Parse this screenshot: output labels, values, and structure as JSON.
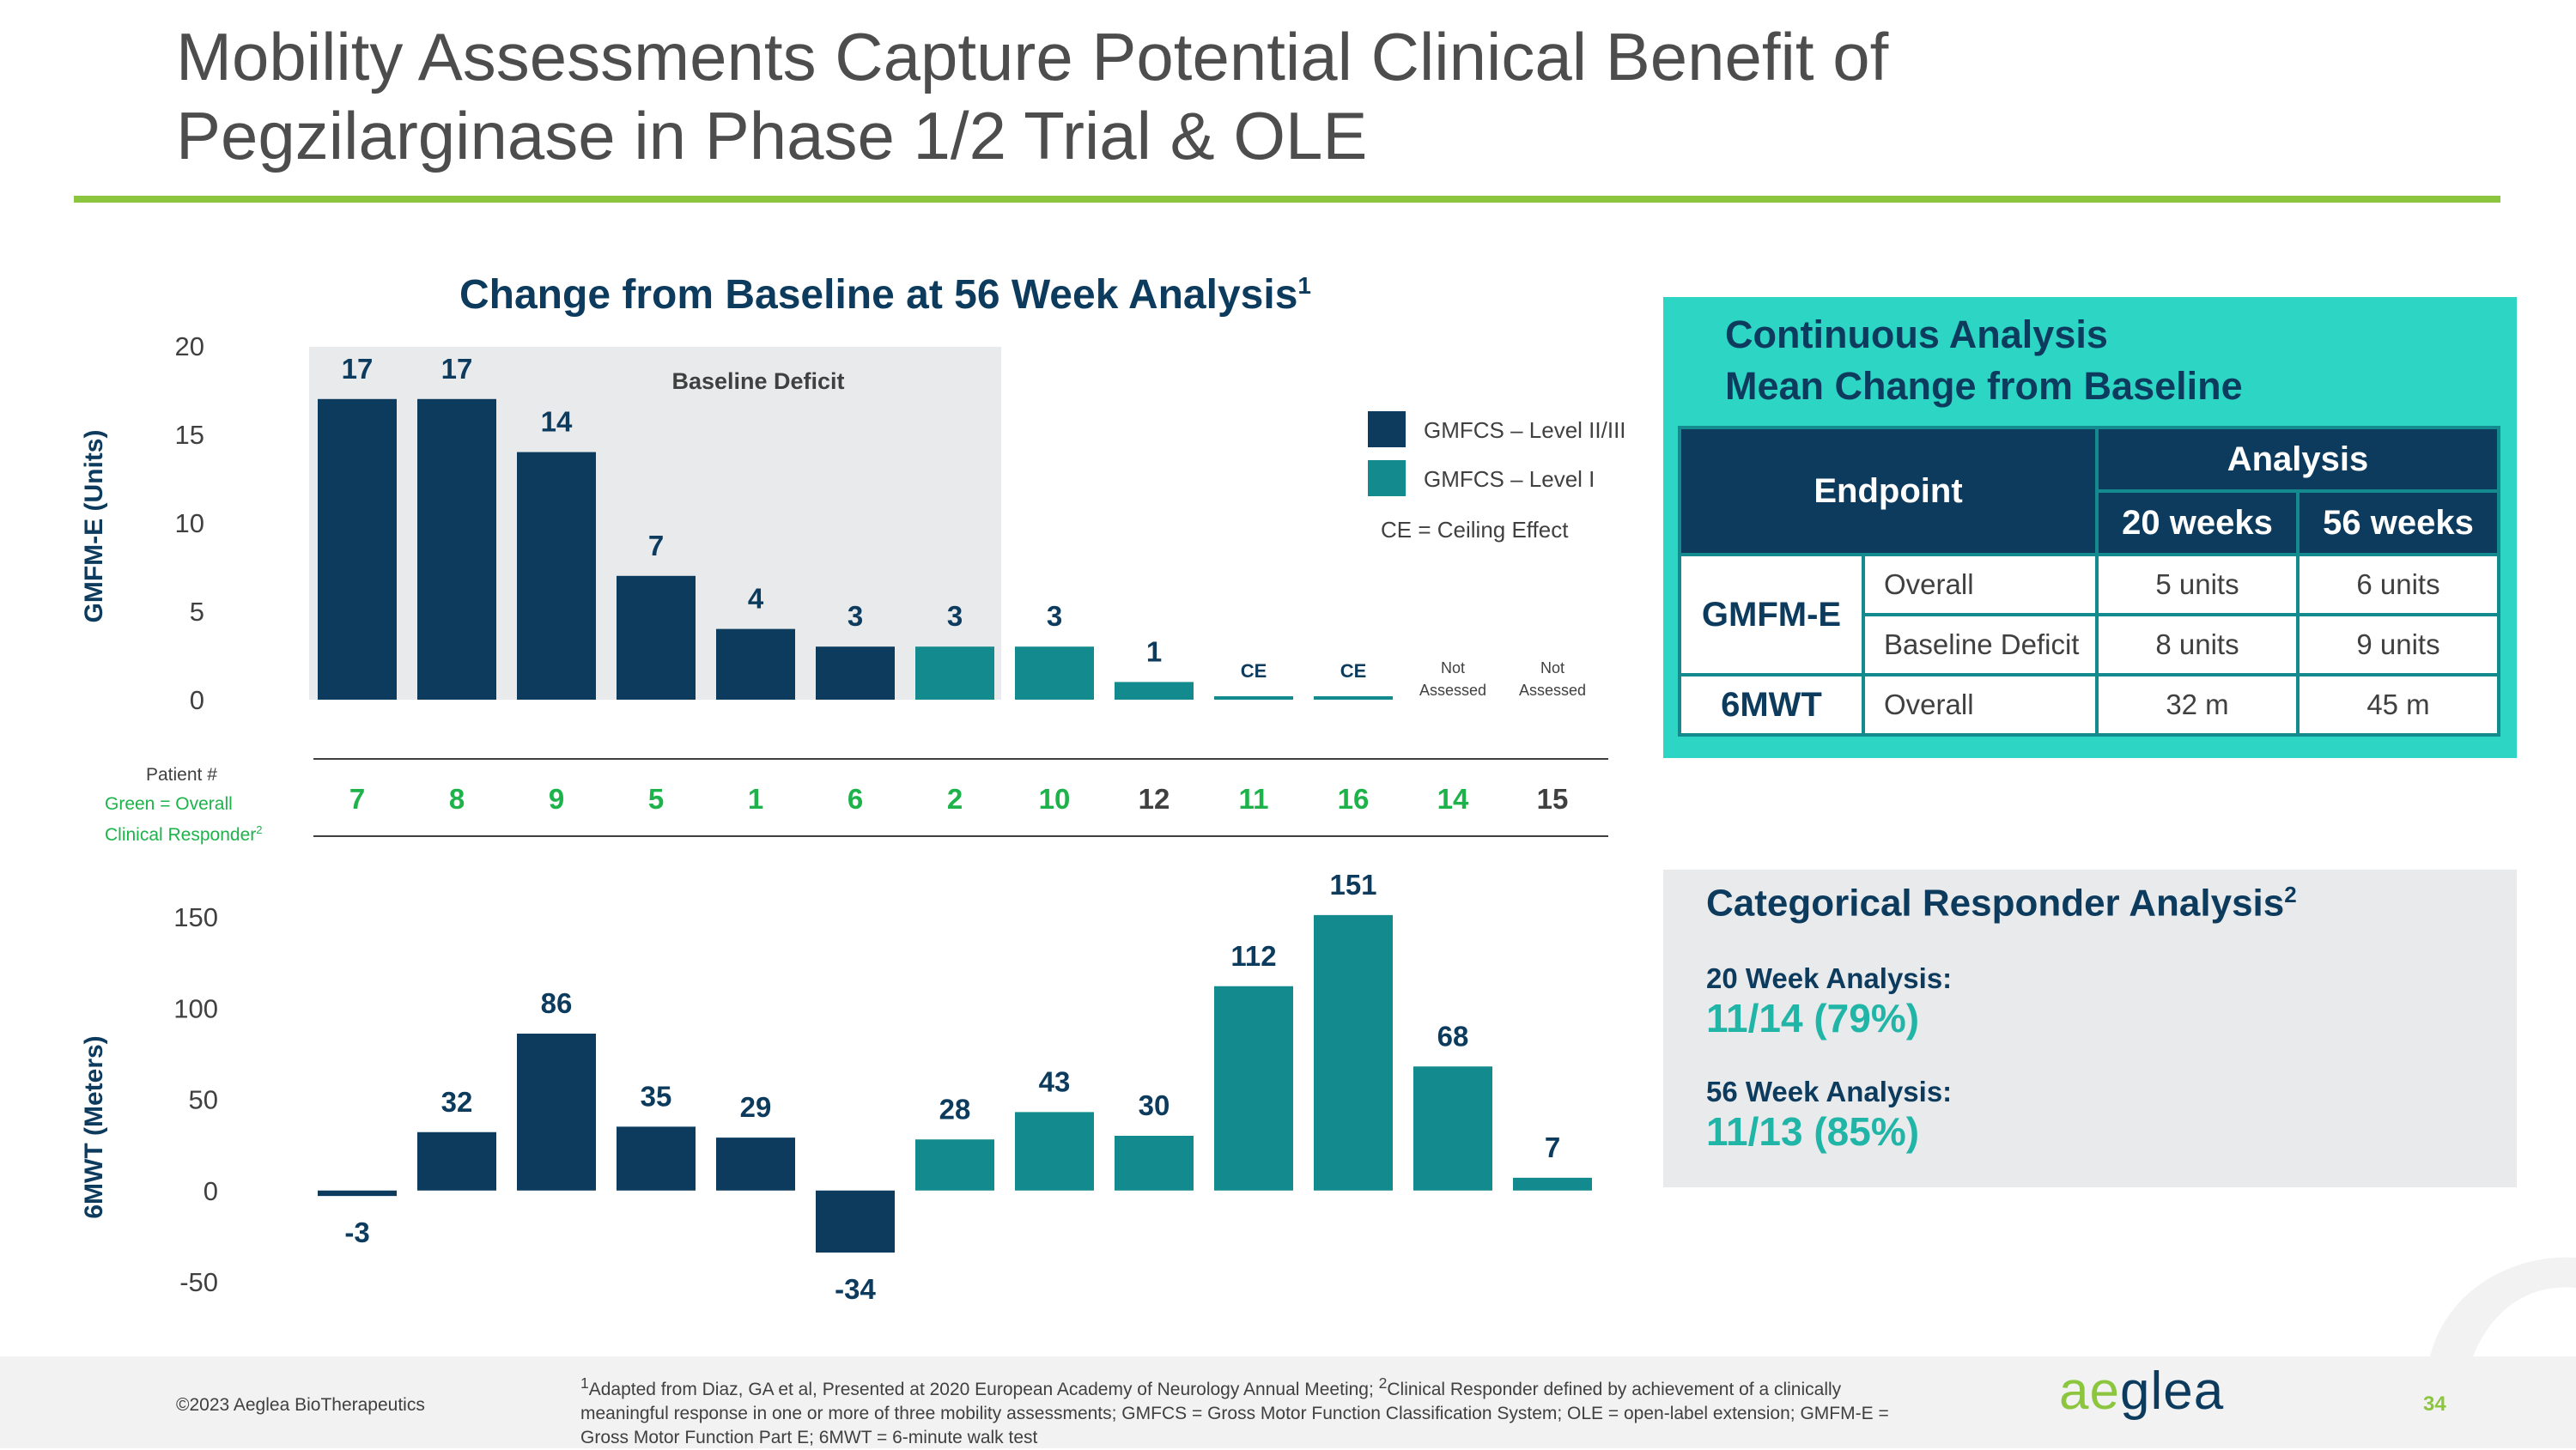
{
  "title": "Mobility Assessments Capture Potential Clinical Benefit of Pegzilarginase in Phase 1/2 Trial & OLE",
  "chart_title": "Change from Baseline at 56 Week Analysis",
  "chart_title_sup": "1",
  "colors": {
    "dark": "#0d3b5e",
    "teal": "#138a8e",
    "green": "#1db34a",
    "accent": "#8cc63f",
    "panel": "#2dd5c4",
    "shade": "#e8eaeb"
  },
  "legend": {
    "dark_label": "GMFCS – Level II/III",
    "teal_label": "GMFCS – Level I",
    "ce_note": "CE = Ceiling Effect"
  },
  "baseline_deficit_label": "Baseline Deficit",
  "patient_label": {
    "line1": "Patient #",
    "line2": "Green = Overall",
    "line3": "Clinical Responder",
    "sup": "2"
  },
  "chart_data": [
    {
      "type": "bar",
      "title": "Change from Baseline at 56 Week Analysis",
      "ylabel": "GMFM-E (Units)",
      "ylim": [
        0,
        20
      ],
      "yticks": [
        0,
        5,
        10,
        15,
        20
      ],
      "categories": [
        "7",
        "8",
        "9",
        "5",
        "1",
        "6",
        "2",
        "10",
        "12",
        "11",
        "16",
        "14",
        "15"
      ],
      "values": [
        17,
        17,
        14,
        7,
        4,
        3,
        3,
        3,
        1,
        0,
        0,
        null,
        null
      ],
      "labels": [
        "17",
        "17",
        "14",
        "7",
        "4",
        "3",
        "3",
        "3",
        "1",
        "CE",
        "CE",
        "Not Assessed",
        "Not Assessed"
      ],
      "level": [
        "II/III",
        "II/III",
        "II/III",
        "II/III",
        "II/III",
        "II/III",
        "I",
        "I",
        "I",
        "I",
        "I",
        "I",
        "I"
      ],
      "baseline_deficit_count": 7
    },
    {
      "type": "bar",
      "ylabel": "6MWT (Meters)",
      "ylim": [
        -50,
        150
      ],
      "yticks": [
        -50,
        0,
        50,
        100,
        150
      ],
      "categories": [
        "7",
        "8",
        "9",
        "5",
        "1",
        "6",
        "2",
        "10",
        "12",
        "11",
        "16",
        "14",
        "15"
      ],
      "values": [
        -3,
        32,
        86,
        35,
        29,
        -34,
        28,
        43,
        30,
        112,
        151,
        68,
        7
      ],
      "level": [
        "II/III",
        "II/III",
        "II/III",
        "II/III",
        "II/III",
        "II/III",
        "I",
        "I",
        "I",
        "I",
        "I",
        "I",
        "I"
      ]
    }
  ],
  "patients": [
    {
      "id": "7",
      "responder": true
    },
    {
      "id": "8",
      "responder": true
    },
    {
      "id": "9",
      "responder": true
    },
    {
      "id": "5",
      "responder": true
    },
    {
      "id": "1",
      "responder": true
    },
    {
      "id": "6",
      "responder": true
    },
    {
      "id": "2",
      "responder": true
    },
    {
      "id": "10",
      "responder": true
    },
    {
      "id": "12",
      "responder": false
    },
    {
      "id": "11",
      "responder": true
    },
    {
      "id": "16",
      "responder": true
    },
    {
      "id": "14",
      "responder": true
    },
    {
      "id": "15",
      "responder": false
    }
  ],
  "continuous": {
    "title_line1": "Continuous Analysis",
    "title_line2": "Mean Change from Baseline",
    "endpoint_header": "Endpoint",
    "analysis_header": "Analysis",
    "col1": "20 weeks",
    "col2": "56 weeks",
    "rows": [
      {
        "endpoint": "GMFM-E",
        "sub": "Overall",
        "w20": "5 units",
        "w56": "6 units"
      },
      {
        "endpoint": "",
        "sub": "Baseline Deficit",
        "w20": "8 units",
        "w56": "9 units"
      },
      {
        "endpoint": "6MWT",
        "sub": "Overall",
        "w20": "32 m",
        "w56": "45 m"
      }
    ]
  },
  "categorical": {
    "title": "Categorical Responder Analysis",
    "title_sup": "2",
    "a20_label": "20 Week Analysis:",
    "a20_value": "11/14 (79%)",
    "a56_label": "56 Week Analysis:",
    "a56_value": "11/13 (85%)"
  },
  "footer": {
    "copyright": "©2023 Aeglea BioTherapeutics",
    "fn1_sup": "1",
    "fn1": "Adapted from Diaz, GA et al, Presented at 2020 European Academy of Neurology Annual Meeting; ",
    "fn2_sup": "2",
    "fn2": "Clinical Responder defined by achievement of a clinically meaningful response in one or more of three mobility assessments; GMFCS = Gross Motor Function Classification System; OLE = open-label extension; GMFM-E = Gross Motor Function Part E; 6MWT = 6-minute walk test",
    "logo_ae": "ae",
    "logo_rest": "glea",
    "page": "34"
  }
}
